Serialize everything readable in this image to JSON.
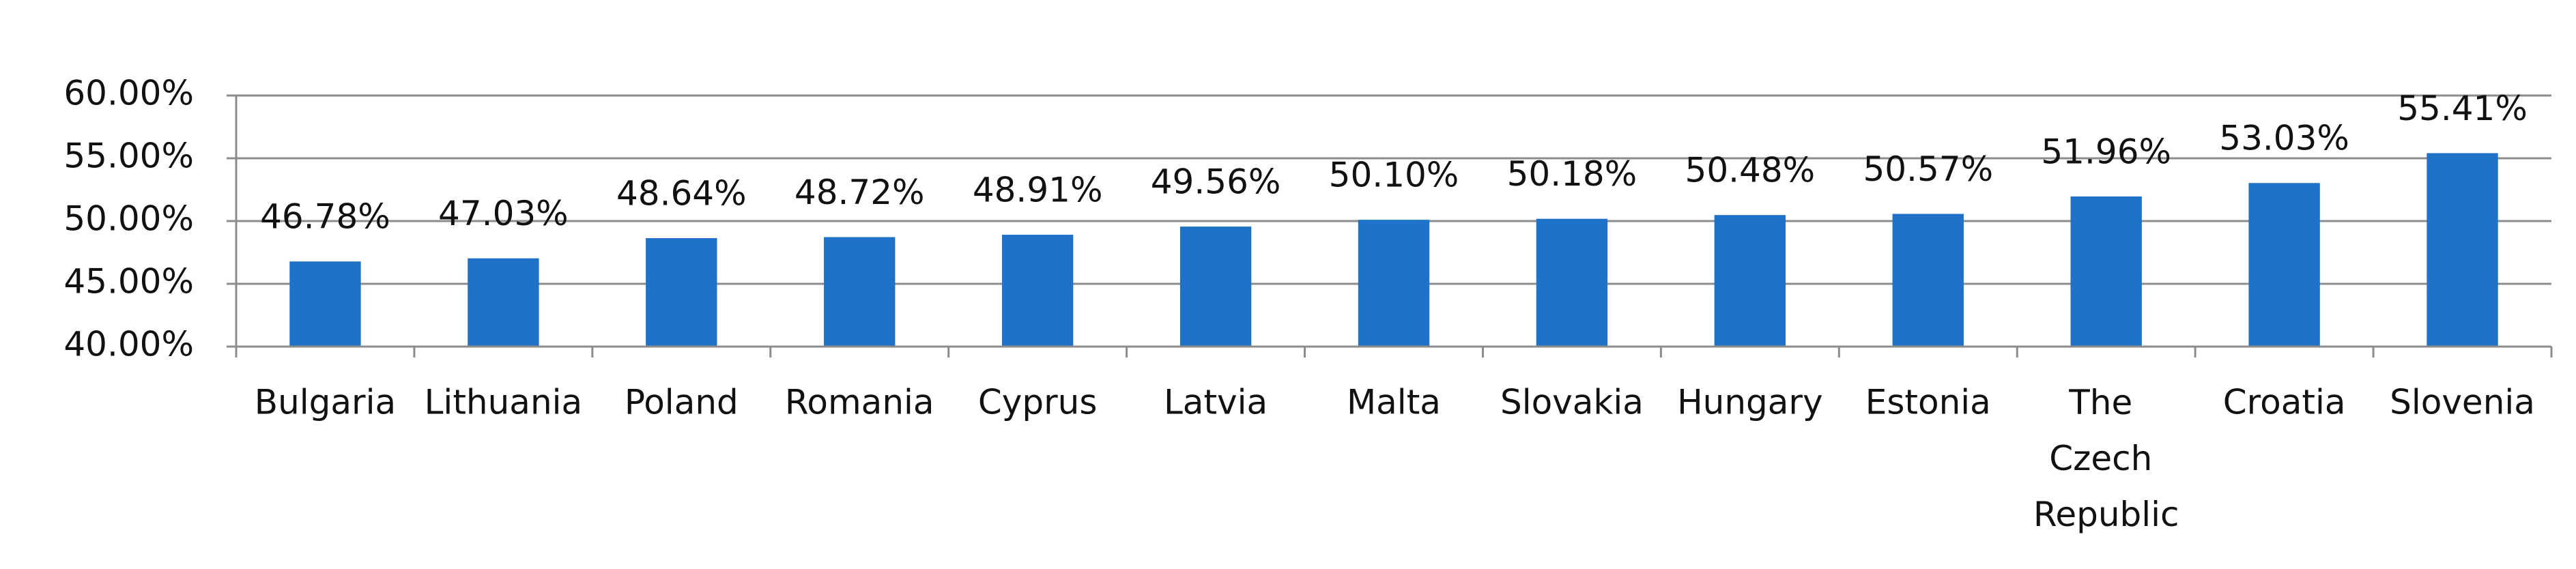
{
  "chart_data": {
    "type": "bar",
    "categories": [
      "Bulgaria",
      "Lithuania",
      "Poland",
      "Romania",
      "Cyprus",
      "Latvia",
      "Malta",
      "Slovakia",
      "Hungary",
      "Estonia",
      "The Czech Republic",
      "Croatia",
      "Slovenia"
    ],
    "values": [
      46.78,
      47.03,
      48.64,
      48.72,
      48.91,
      49.56,
      50.1,
      50.18,
      50.48,
      50.57,
      51.96,
      53.03,
      55.41
    ],
    "value_labels": [
      "46.78%",
      "47.03%",
      "48.64%",
      "48.72%",
      "48.91%",
      "49.56%",
      "50.10%",
      "50.18%",
      "50.48%",
      "50.57%",
      "51.96%",
      "53.03%",
      "55.41%"
    ],
    "color": "#1f72c8",
    "ylim": [
      40,
      60
    ],
    "yticks": [
      {
        "value": 40,
        "label": "40.00%"
      },
      {
        "value": 45,
        "label": "45.00%"
      },
      {
        "value": 50,
        "label": "50.00%"
      },
      {
        "value": 55,
        "label": "55.00%"
      },
      {
        "value": 60,
        "label": "60.00%"
      }
    ],
    "grid": true
  }
}
